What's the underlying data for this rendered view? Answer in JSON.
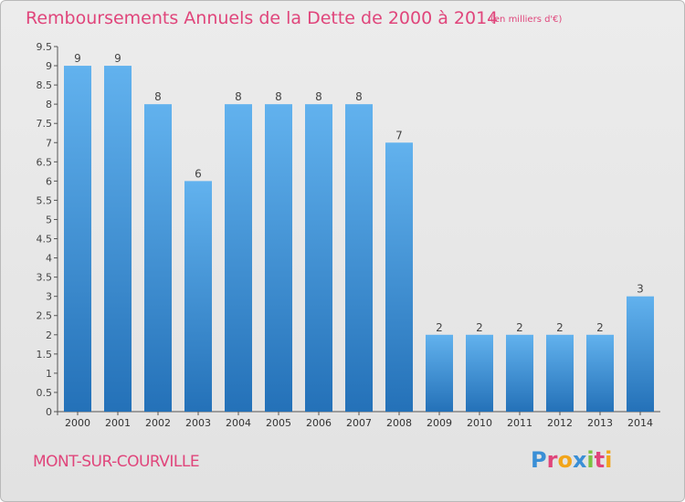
{
  "header": {
    "title": "Remboursements Annuels de la Dette de 2000 à 2014",
    "unit": "(en milliers d'€)"
  },
  "footer": {
    "city": "MONT-SUR-COURVILLE",
    "brand": "Proxiti",
    "brand_letters": [
      {
        "char": "P",
        "color": "#3a8fd6"
      },
      {
        "char": "r",
        "color": "#e0457b"
      },
      {
        "char": "o",
        "color": "#f2a51a"
      },
      {
        "char": "x",
        "color": "#3a8fd6"
      },
      {
        "char": "i",
        "color": "#7cc242"
      },
      {
        "char": "t",
        "color": "#e0457b"
      },
      {
        "char": "i",
        "color": "#f2a51a"
      }
    ]
  },
  "colors": {
    "bar_light": "#62b2ee",
    "bar_dark": "#2471b8",
    "text_accent": "#e0457b"
  },
  "chart_data": {
    "type": "bar",
    "categories": [
      "2000",
      "2001",
      "2002",
      "2003",
      "2004",
      "2005",
      "2006",
      "2007",
      "2008",
      "2009",
      "2010",
      "2011",
      "2012",
      "2013",
      "2014"
    ],
    "values": [
      9,
      9,
      8,
      6,
      8,
      8,
      8,
      8,
      7,
      2,
      2,
      2,
      2,
      2,
      3
    ],
    "data_labels": [
      "9",
      "9",
      "8",
      "6",
      "8",
      "8",
      "8",
      "8",
      "7",
      "2",
      "2",
      "2",
      "2",
      "2",
      "3"
    ],
    "ylim": [
      0,
      9.5
    ],
    "y_ticks": [
      0,
      0.5,
      1,
      1.5,
      2,
      2.5,
      3,
      3.5,
      4,
      4.5,
      5,
      5.5,
      6,
      6.5,
      7,
      7.5,
      8,
      8.5,
      9,
      9.5
    ],
    "y_tick_labels": [
      "0",
      "0.5",
      "1",
      "1.5",
      "2",
      "2.5",
      "3",
      "3.5",
      "4",
      "4.5",
      "5",
      "5.5",
      "6",
      "6.5",
      "7",
      "7.5",
      "8",
      "8.5",
      "9",
      "9.5"
    ],
    "grid": false,
    "title": "Remboursements Annuels de la Dette de 2000 à 2014",
    "xlabel": "",
    "ylabel": ""
  }
}
